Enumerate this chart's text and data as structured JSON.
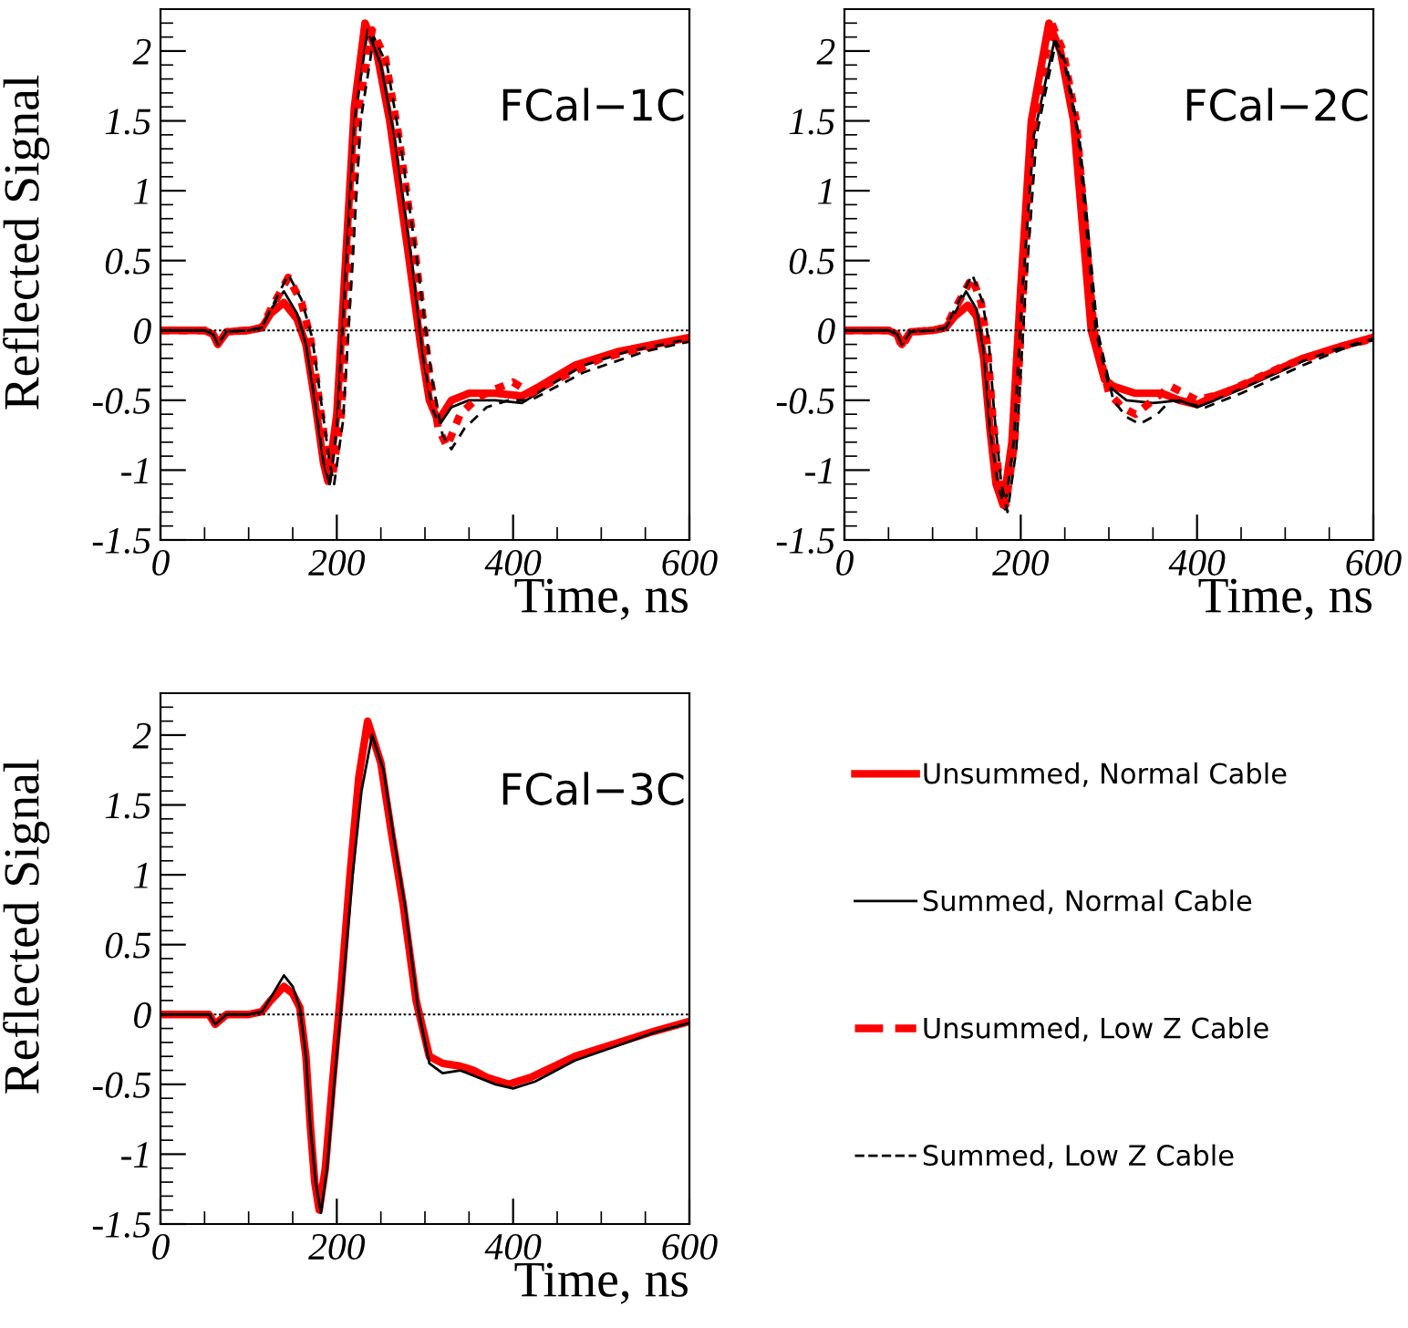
{
  "chart_data": [
    {
      "type": "line",
      "xlabel": "Time, ns",
      "ylabel": "Reflected Signal",
      "annotations": [
        "FCal−1C"
      ],
      "xlim": [
        0,
        600
      ],
      "ylim": [
        -1.5,
        2.3
      ],
      "xticks": [
        0,
        200,
        400,
        600
      ],
      "yticks": [
        -1.5,
        -1,
        -0.5,
        0,
        0.5,
        1,
        1.5,
        2
      ],
      "grid": false,
      "legend": "right",
      "ref_lines": [
        {
          "axis": "y",
          "value": 0,
          "color": "#000000",
          "line_style": "dotted"
        }
      ],
      "series": [
        {
          "name": "Unsummed, Normal Cable",
          "color": "#ff0000",
          "line_style": "solid",
          "x": [
            0,
            50,
            60,
            65,
            75,
            100,
            115,
            125,
            140,
            155,
            165,
            175,
            185,
            190,
            200,
            210,
            220,
            232,
            245,
            260,
            280,
            295,
            305,
            315,
            330,
            350,
            380,
            410,
            430,
            470,
            520,
            560,
            600
          ],
          "values": [
            0,
            0,
            -0.03,
            -0.1,
            -0.01,
            0,
            0.02,
            0.12,
            0.2,
            0.08,
            -0.1,
            -0.5,
            -0.95,
            -1.08,
            -0.6,
            0.5,
            1.6,
            2.2,
            2.0,
            1.5,
            0.6,
            -0.1,
            -0.5,
            -0.65,
            -0.5,
            -0.45,
            -0.45,
            -0.47,
            -0.4,
            -0.25,
            -0.15,
            -0.1,
            -0.05
          ]
        },
        {
          "name": "Summed, Normal Cable",
          "color": "#000000",
          "line_style": "solid",
          "x": [
            0,
            50,
            60,
            65,
            75,
            100,
            115,
            125,
            140,
            155,
            165,
            175,
            185,
            192,
            200,
            210,
            220,
            235,
            250,
            265,
            285,
            298,
            308,
            316,
            330,
            350,
            380,
            410,
            440,
            480,
            530,
            570,
            600
          ],
          "values": [
            0,
            0,
            -0.03,
            -0.1,
            -0.01,
            0,
            0.02,
            0.15,
            0.28,
            0.12,
            -0.1,
            -0.5,
            -0.95,
            -1.1,
            -0.7,
            0.4,
            1.5,
            2.15,
            1.9,
            1.4,
            0.5,
            -0.2,
            -0.55,
            -0.68,
            -0.55,
            -0.5,
            -0.5,
            -0.52,
            -0.4,
            -0.25,
            -0.15,
            -0.1,
            -0.06
          ]
        },
        {
          "name": "Unsummed, Low Z Cable",
          "color": "#ff0000",
          "line_style": "dotted",
          "x": [
            0,
            50,
            60,
            65,
            75,
            100,
            115,
            125,
            145,
            160,
            170,
            180,
            190,
            195,
            205,
            215,
            225,
            240,
            255,
            270,
            290,
            305,
            315,
            325,
            340,
            360,
            380,
            400,
            420,
            450,
            500,
            550,
            600
          ],
          "values": [
            0,
            0,
            -0.03,
            -0.1,
            -0.01,
            0,
            0.02,
            0.15,
            0.38,
            0.2,
            -0.05,
            -0.5,
            -0.95,
            -1.05,
            -0.6,
            0.5,
            1.6,
            2.15,
            1.95,
            1.4,
            0.5,
            -0.3,
            -0.7,
            -0.83,
            -0.6,
            -0.48,
            -0.42,
            -0.37,
            -0.45,
            -0.35,
            -0.2,
            -0.12,
            -0.06
          ]
        },
        {
          "name": "Summed, Low Z Cable",
          "color": "#000000",
          "line_style": "dashed",
          "x": [
            0,
            50,
            60,
            65,
            75,
            100,
            115,
            125,
            145,
            160,
            172,
            182,
            192,
            197,
            207,
            217,
            227,
            242,
            257,
            272,
            292,
            308,
            320,
            330,
            345,
            370,
            395,
            420,
            450,
            480,
            550,
            600
          ],
          "values": [
            0,
            0,
            -0.03,
            -0.1,
            -0.01,
            0,
            0.02,
            0.15,
            0.4,
            0.22,
            -0.05,
            -0.5,
            -0.95,
            -1.1,
            -0.65,
            0.4,
            1.5,
            2.1,
            1.9,
            1.35,
            0.45,
            -0.35,
            -0.75,
            -0.85,
            -0.7,
            -0.55,
            -0.5,
            -0.5,
            -0.4,
            -0.3,
            -0.15,
            -0.08
          ]
        }
      ]
    },
    {
      "type": "line",
      "xlabel": "Time, ns",
      "annotations": [
        "FCal−2C"
      ],
      "xlim": [
        0,
        600
      ],
      "ylim": [
        -1.5,
        2.3
      ],
      "xticks": [
        0,
        200,
        400,
        600
      ],
      "yticks": [
        -1.5,
        -1,
        -0.5,
        0,
        0.5,
        1,
        1.5,
        2
      ],
      "grid": false,
      "ref_lines": [
        {
          "axis": "y",
          "value": 0,
          "color": "#000000",
          "line_style": "dotted"
        }
      ],
      "series": [
        {
          "color": "#ff0000",
          "line_style": "solid",
          "x": [
            0,
            50,
            60,
            65,
            75,
            100,
            115,
            125,
            140,
            150,
            158,
            165,
            172,
            180,
            190,
            200,
            212,
            232,
            245,
            260,
            280,
            295,
            305,
            330,
            360,
            380,
            400,
            420,
            450,
            520,
            560,
            600
          ],
          "values": [
            0,
            0,
            -0.03,
            -0.1,
            -0.01,
            0,
            0.02,
            0.1,
            0.18,
            0.1,
            -0.2,
            -0.7,
            -1.1,
            -1.25,
            -0.8,
            0.3,
            1.5,
            2.2,
            2.0,
            1.5,
            0.0,
            -0.35,
            -0.4,
            -0.45,
            -0.45,
            -0.5,
            -0.53,
            -0.47,
            -0.4,
            -0.2,
            -0.12,
            -0.05
          ]
        },
        {
          "color": "#000000",
          "line_style": "solid",
          "x": [
            0,
            50,
            60,
            65,
            75,
            100,
            115,
            125,
            138,
            150,
            158,
            165,
            174,
            182,
            192,
            202,
            215,
            238,
            250,
            265,
            285,
            300,
            320,
            350,
            380,
            400,
            420,
            450,
            520,
            560,
            600
          ],
          "values": [
            0,
            0,
            -0.03,
            -0.1,
            -0.01,
            0,
            0.02,
            0.12,
            0.28,
            0.15,
            -0.15,
            -0.7,
            -1.1,
            -1.28,
            -0.8,
            0.3,
            1.4,
            2.07,
            1.9,
            1.4,
            0.0,
            -0.4,
            -0.5,
            -0.52,
            -0.5,
            -0.55,
            -0.5,
            -0.42,
            -0.22,
            -0.13,
            -0.06
          ]
        },
        {
          "color": "#ff0000",
          "line_style": "dotted",
          "x": [
            0,
            50,
            60,
            65,
            75,
            100,
            115,
            125,
            145,
            155,
            162,
            168,
            176,
            183,
            193,
            203,
            215,
            235,
            248,
            263,
            283,
            300,
            315,
            330,
            350,
            370,
            400,
            430,
            500,
            560,
            600
          ],
          "values": [
            0,
            0,
            -0.03,
            -0.12,
            -0.01,
            0,
            0.02,
            0.15,
            0.38,
            0.2,
            -0.1,
            -0.6,
            -1.1,
            -1.25,
            -0.8,
            0.3,
            1.5,
            2.2,
            2.0,
            1.5,
            0.0,
            -0.45,
            -0.55,
            -0.6,
            -0.5,
            -0.4,
            -0.5,
            -0.45,
            -0.25,
            -0.12,
            -0.06
          ]
        },
        {
          "color": "#000000",
          "line_style": "dashed",
          "x": [
            0,
            50,
            60,
            65,
            75,
            100,
            115,
            125,
            145,
            157,
            164,
            170,
            178,
            185,
            195,
            205,
            218,
            240,
            252,
            267,
            287,
            305,
            320,
            335,
            355,
            370,
            410,
            450,
            520,
            570,
            600
          ],
          "values": [
            0,
            0,
            -0.03,
            -0.1,
            -0.01,
            0,
            0.02,
            0.15,
            0.4,
            0.2,
            -0.1,
            -0.6,
            -1.1,
            -1.3,
            -0.85,
            0.25,
            1.4,
            2.07,
            1.9,
            1.35,
            0.0,
            -0.5,
            -0.62,
            -0.67,
            -0.6,
            -0.5,
            -0.55,
            -0.45,
            -0.25,
            -0.12,
            -0.07
          ]
        }
      ]
    },
    {
      "type": "line",
      "xlabel": "Time, ns",
      "ylabel": "Reflected Signal",
      "annotations": [
        "FCal−3C"
      ],
      "xlim": [
        0,
        600
      ],
      "ylim": [
        -1.5,
        2.3
      ],
      "xticks": [
        0,
        200,
        400,
        600
      ],
      "yticks": [
        -1.5,
        -1,
        -0.5,
        0,
        0.5,
        1,
        1.5,
        2
      ],
      "grid": false,
      "ref_lines": [
        {
          "axis": "y",
          "value": 0,
          "color": "#000000",
          "line_style": "dotted"
        }
      ],
      "series": [
        {
          "color": "#ff0000",
          "line_style": "solid",
          "x": [
            0,
            55,
            62,
            75,
            100,
            115,
            125,
            140,
            150,
            158,
            165,
            170,
            175,
            180,
            187,
            195,
            205,
            215,
            225,
            235,
            250,
            262,
            275,
            290,
            305,
            320,
            340,
            355,
            370,
            395,
            420,
            470,
            520,
            560,
            600
          ],
          "values": [
            0,
            0,
            -0.07,
            0,
            0,
            0.02,
            0.1,
            0.2,
            0.15,
            0.05,
            -0.3,
            -0.8,
            -1.2,
            -1.4,
            -1.1,
            -0.5,
            0.2,
            1.0,
            1.7,
            2.1,
            1.8,
            1.3,
            0.8,
            0.1,
            -0.3,
            -0.35,
            -0.37,
            -0.4,
            -0.45,
            -0.5,
            -0.45,
            -0.3,
            -0.2,
            -0.12,
            -0.05
          ]
        },
        {
          "color": "#000000",
          "line_style": "solid",
          "x": [
            0,
            55,
            62,
            75,
            100,
            115,
            125,
            140,
            150,
            158,
            165,
            170,
            176,
            182,
            189,
            197,
            207,
            218,
            228,
            240,
            253,
            265,
            278,
            292,
            305,
            320,
            340,
            360,
            380,
            400,
            425,
            470,
            520,
            560,
            600
          ],
          "values": [
            0,
            0,
            -0.07,
            0,
            0,
            0.02,
            0.12,
            0.28,
            0.2,
            0.05,
            -0.3,
            -0.8,
            -1.2,
            -1.42,
            -1.1,
            -0.5,
            0.2,
            1.0,
            1.6,
            2.0,
            1.75,
            1.25,
            0.75,
            0.05,
            -0.35,
            -0.42,
            -0.4,
            -0.45,
            -0.5,
            -0.53,
            -0.48,
            -0.33,
            -0.22,
            -0.13,
            -0.06
          ]
        }
      ]
    }
  ]
}
